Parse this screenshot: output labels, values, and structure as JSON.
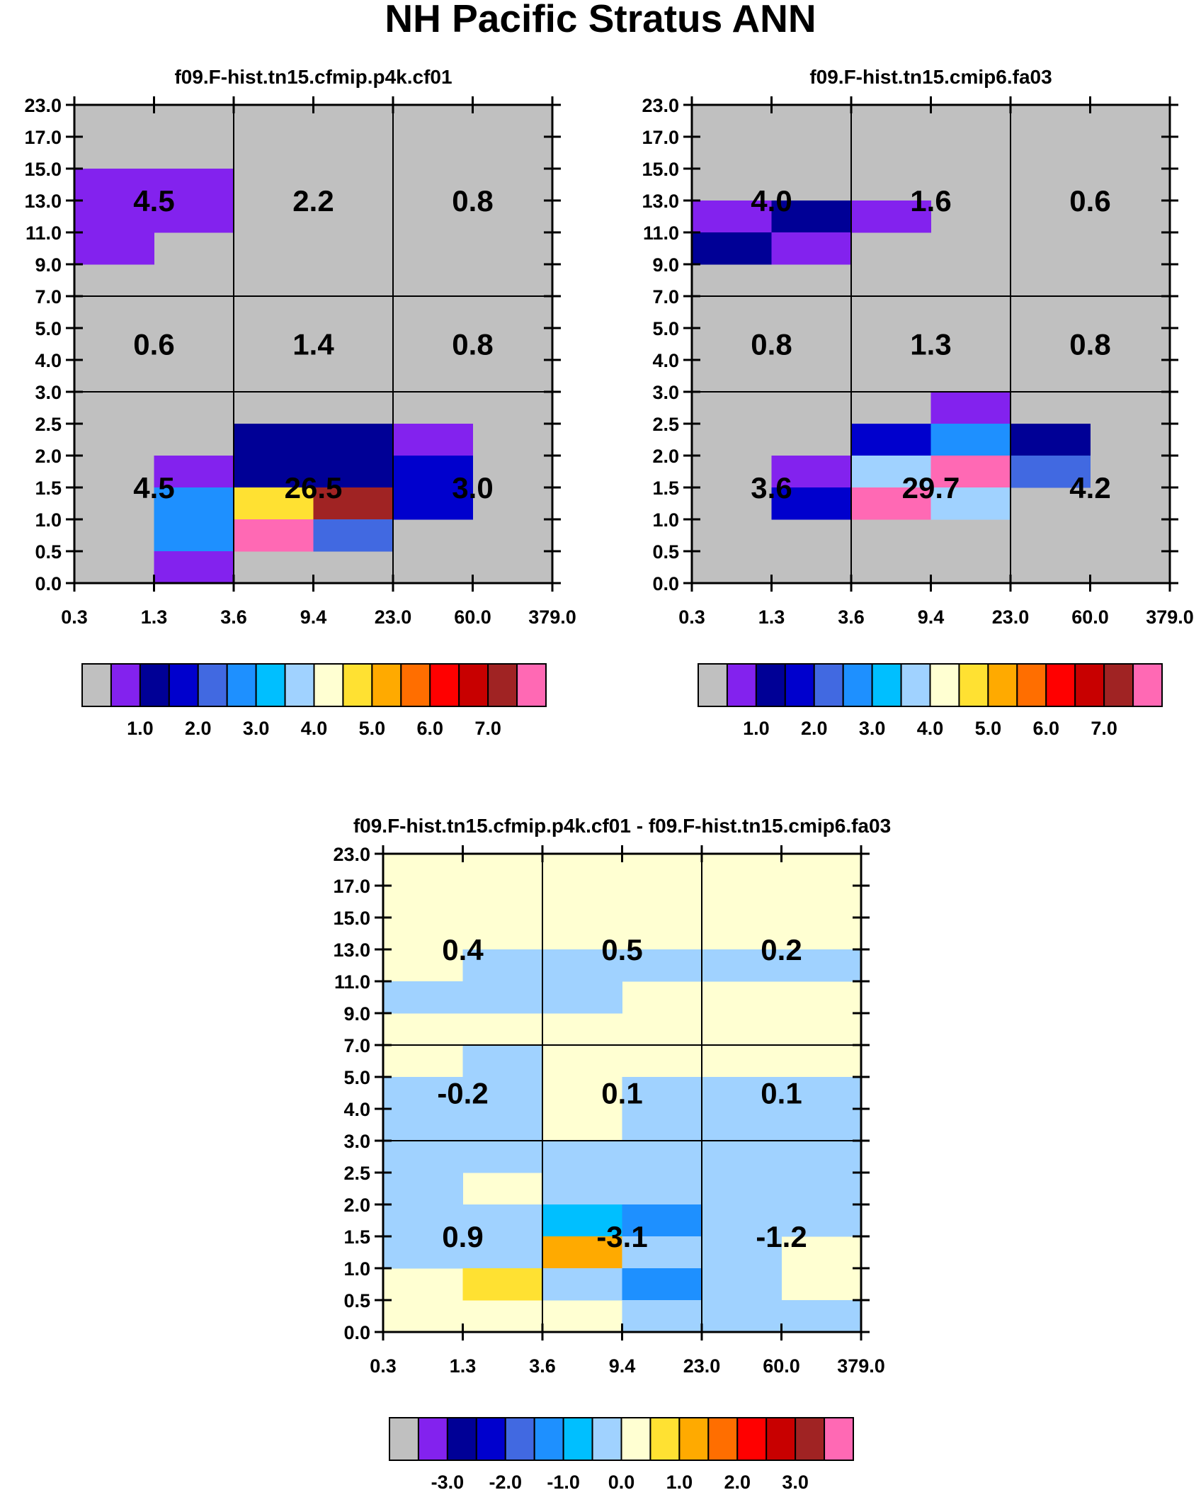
{
  "figure_title": "NH Pacific Stratus ANN",
  "y_tick_labels": [
    "0.0",
    "0.5",
    "1.0",
    "1.5",
    "2.0",
    "2.5",
    "3.0",
    "4.0",
    "5.0",
    "7.0",
    "9.0",
    "11.0",
    "13.0",
    "15.0",
    "17.0",
    "23.0"
  ],
  "x_tick_labels": [
    "0.3",
    "1.3",
    "3.6",
    "9.4",
    "23.0",
    "60.0",
    "379.0"
  ],
  "palette": [
    "#c0c0c0",
    "#8322ee",
    "#000096",
    "#0000cd",
    "#4169e1",
    "#1e90ff",
    "#00bfff",
    "#a0d2ff",
    "#ffffd2",
    "#ffe132",
    "#ffaa00",
    "#ff6e00",
    "#ff0000",
    "#c80000",
    "#a02323",
    "#ff69b4"
  ],
  "chart_data": [
    {
      "type": "heatmap",
      "title": "f09.F-hist.tn15.cfmip.p4k.cf01",
      "colorbar": {
        "levels": [
          0.5,
          1.0,
          1.5,
          2.0,
          2.5,
          3.0,
          3.5,
          4.0,
          4.5,
          5.0,
          5.5,
          6.0,
          6.5,
          7.0
        ],
        "labels": [
          "1.0",
          "2.0",
          "3.0",
          "4.0",
          "5.0",
          "6.0",
          "7.0"
        ]
      },
      "background_class": 0,
      "cells": [
        {
          "row": 12,
          "col": 0,
          "cls": 1
        },
        {
          "row": 12,
          "col": 1,
          "cls": 1
        },
        {
          "row": 11,
          "col": 0,
          "cls": 1
        },
        {
          "row": 11,
          "col": 1,
          "cls": 1
        },
        {
          "row": 10,
          "col": 0,
          "cls": 1
        },
        {
          "row": 4,
          "col": 2,
          "cls": 2
        },
        {
          "row": 4,
          "col": 3,
          "cls": 2
        },
        {
          "row": 4,
          "col": 4,
          "cls": 1
        },
        {
          "row": 3,
          "col": 1,
          "cls": 1
        },
        {
          "row": 3,
          "col": 2,
          "cls": 2
        },
        {
          "row": 3,
          "col": 3,
          "cls": 2
        },
        {
          "row": 3,
          "col": 4,
          "cls": 3
        },
        {
          "row": 2,
          "col": 1,
          "cls": 5
        },
        {
          "row": 2,
          "col": 2,
          "cls": 9
        },
        {
          "row": 2,
          "col": 3,
          "cls": 14
        },
        {
          "row": 2,
          "col": 4,
          "cls": 3
        },
        {
          "row": 1,
          "col": 1,
          "cls": 5
        },
        {
          "row": 1,
          "col": 2,
          "cls": 15
        },
        {
          "row": 1,
          "col": 3,
          "cls": 4
        },
        {
          "row": 0,
          "col": 1,
          "cls": 1
        }
      ],
      "box_values": [
        {
          "group": "high",
          "xbin": "low",
          "value": "4.5"
        },
        {
          "group": "high",
          "xbin": "mid",
          "value": "2.2"
        },
        {
          "group": "high",
          "xbin": "high",
          "value": "0.8"
        },
        {
          "group": "mid",
          "xbin": "low",
          "value": "0.6"
        },
        {
          "group": "mid",
          "xbin": "mid",
          "value": "1.4"
        },
        {
          "group": "mid",
          "xbin": "high",
          "value": "0.8"
        },
        {
          "group": "low",
          "xbin": "low",
          "value": "4.5"
        },
        {
          "group": "low",
          "xbin": "mid",
          "value": "26.5"
        },
        {
          "group": "low",
          "xbin": "high",
          "value": "3.0"
        }
      ]
    },
    {
      "type": "heatmap",
      "title": "f09.F-hist.tn15.cmip6.fa03",
      "colorbar": {
        "levels": [
          0.5,
          1.0,
          1.5,
          2.0,
          2.5,
          3.0,
          3.5,
          4.0,
          4.5,
          5.0,
          5.5,
          6.0,
          6.5,
          7.0
        ],
        "labels": [
          "1.0",
          "2.0",
          "3.0",
          "4.0",
          "5.0",
          "6.0",
          "7.0"
        ]
      },
      "background_class": 0,
      "cells": [
        {
          "row": 11,
          "col": 0,
          "cls": 1
        },
        {
          "row": 11,
          "col": 1,
          "cls": 2
        },
        {
          "row": 11,
          "col": 2,
          "cls": 1
        },
        {
          "row": 10,
          "col": 0,
          "cls": 2
        },
        {
          "row": 10,
          "col": 1,
          "cls": 1
        },
        {
          "row": 5,
          "col": 3,
          "cls": 1
        },
        {
          "row": 4,
          "col": 2,
          "cls": 3
        },
        {
          "row": 4,
          "col": 3,
          "cls": 5
        },
        {
          "row": 4,
          "col": 4,
          "cls": 2
        },
        {
          "row": 3,
          "col": 1,
          "cls": 1
        },
        {
          "row": 3,
          "col": 2,
          "cls": 7
        },
        {
          "row": 3,
          "col": 3,
          "cls": 15
        },
        {
          "row": 3,
          "col": 4,
          "cls": 4
        },
        {
          "row": 2,
          "col": 1,
          "cls": 3
        },
        {
          "row": 2,
          "col": 2,
          "cls": 15
        },
        {
          "row": 2,
          "col": 3,
          "cls": 7
        }
      ],
      "box_values": [
        {
          "group": "high",
          "xbin": "low",
          "value": "4.0"
        },
        {
          "group": "high",
          "xbin": "mid",
          "value": "1.6"
        },
        {
          "group": "high",
          "xbin": "high",
          "value": "0.6"
        },
        {
          "group": "mid",
          "xbin": "low",
          "value": "0.8"
        },
        {
          "group": "mid",
          "xbin": "mid",
          "value": "1.3"
        },
        {
          "group": "mid",
          "xbin": "high",
          "value": "0.8"
        },
        {
          "group": "low",
          "xbin": "low",
          "value": "3.6"
        },
        {
          "group": "low",
          "xbin": "mid",
          "value": "29.7"
        },
        {
          "group": "low",
          "xbin": "high",
          "value": "4.2"
        }
      ]
    },
    {
      "type": "heatmap",
      "title": "f09.F-hist.tn15.cfmip.p4k.cf01 - f09.F-hist.tn15.cmip6.fa03",
      "colorbar": {
        "levels": [
          -3.5,
          -3.0,
          -2.5,
          -2.0,
          -1.5,
          -1.0,
          -0.5,
          0.0,
          0.5,
          1.0,
          1.5,
          2.0,
          2.5,
          3.0
        ],
        "labels": [
          "-3.0",
          "-2.0",
          "-1.0",
          "0.0",
          "1.0",
          "2.0",
          "3.0"
        ]
      },
      "background_class": 8,
      "cells": [
        {
          "row": 11,
          "col": 1,
          "cls": 7
        },
        {
          "row": 11,
          "col": 2,
          "cls": 7
        },
        {
          "row": 11,
          "col": 3,
          "cls": 7
        },
        {
          "row": 11,
          "col": 4,
          "cls": 7
        },
        {
          "row": 11,
          "col": 5,
          "cls": 7
        },
        {
          "row": 10,
          "col": 0,
          "cls": 7
        },
        {
          "row": 10,
          "col": 1,
          "cls": 7
        },
        {
          "row": 10,
          "col": 2,
          "cls": 7
        },
        {
          "row": 8,
          "col": 1,
          "cls": 7
        },
        {
          "row": 7,
          "col": 0,
          "cls": 7
        },
        {
          "row": 7,
          "col": 1,
          "cls": 7
        },
        {
          "row": 7,
          "col": 3,
          "cls": 7
        },
        {
          "row": 7,
          "col": 4,
          "cls": 7
        },
        {
          "row": 7,
          "col": 5,
          "cls": 7
        },
        {
          "row": 6,
          "col": 0,
          "cls": 7
        },
        {
          "row": 6,
          "col": 1,
          "cls": 7
        },
        {
          "row": 6,
          "col": 3,
          "cls": 7
        },
        {
          "row": 6,
          "col": 4,
          "cls": 7
        },
        {
          "row": 6,
          "col": 5,
          "cls": 7
        },
        {
          "row": 5,
          "col": 0,
          "cls": 7
        },
        {
          "row": 5,
          "col": 1,
          "cls": 7
        },
        {
          "row": 5,
          "col": 2,
          "cls": 7
        },
        {
          "row": 5,
          "col": 3,
          "cls": 7
        },
        {
          "row": 5,
          "col": 4,
          "cls": 7
        },
        {
          "row": 5,
          "col": 5,
          "cls": 7
        },
        {
          "row": 4,
          "col": 0,
          "cls": 7
        },
        {
          "row": 4,
          "col": 2,
          "cls": 7
        },
        {
          "row": 4,
          "col": 3,
          "cls": 7
        },
        {
          "row": 4,
          "col": 4,
          "cls": 7
        },
        {
          "row": 4,
          "col": 5,
          "cls": 7
        },
        {
          "row": 3,
          "col": 0,
          "cls": 7
        },
        {
          "row": 3,
          "col": 1,
          "cls": 7
        },
        {
          "row": 3,
          "col": 2,
          "cls": 6
        },
        {
          "row": 3,
          "col": 3,
          "cls": 5
        },
        {
          "row": 3,
          "col": 4,
          "cls": 7
        },
        {
          "row": 3,
          "col": 5,
          "cls": 7
        },
        {
          "row": 2,
          "col": 0,
          "cls": 7
        },
        {
          "row": 2,
          "col": 1,
          "cls": 7
        },
        {
          "row": 2,
          "col": 2,
          "cls": 10
        },
        {
          "row": 2,
          "col": 3,
          "cls": 7
        },
        {
          "row": 2,
          "col": 4,
          "cls": 7
        },
        {
          "row": 1,
          "col": 1,
          "cls": 9
        },
        {
          "row": 1,
          "col": 2,
          "cls": 7
        },
        {
          "row": 1,
          "col": 3,
          "cls": 5
        },
        {
          "row": 1,
          "col": 4,
          "cls": 7
        },
        {
          "row": 0,
          "col": 3,
          "cls": 7
        },
        {
          "row": 0,
          "col": 4,
          "cls": 7
        },
        {
          "row": 0,
          "col": 5,
          "cls": 7
        }
      ],
      "box_values": [
        {
          "group": "high",
          "xbin": "low",
          "value": "0.4"
        },
        {
          "group": "high",
          "xbin": "mid",
          "value": "0.5"
        },
        {
          "group": "high",
          "xbin": "high",
          "value": "0.2"
        },
        {
          "group": "mid",
          "xbin": "low",
          "value": "-0.2"
        },
        {
          "group": "mid",
          "xbin": "mid",
          "value": "0.1"
        },
        {
          "group": "mid",
          "xbin": "high",
          "value": "0.1"
        },
        {
          "group": "low",
          "xbin": "low",
          "value": "0.9"
        },
        {
          "group": "low",
          "xbin": "mid",
          "value": "-3.1"
        },
        {
          "group": "low",
          "xbin": "high",
          "value": "-1.2"
        }
      ]
    }
  ]
}
